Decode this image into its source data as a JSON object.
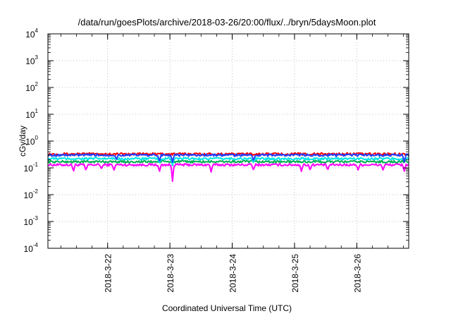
{
  "chart_data": {
    "type": "line",
    "title": "/data/run/goesPlots/archive/2018-03-26/20:00/flux/../bryn/5daysMoon.plot",
    "xlabel": "Coordinated Universal Time (UTC)",
    "ylabel": "cGy/day",
    "yscale": "log",
    "ylim": [
      0.0001,
      10000
    ],
    "ytick_labels": [
      {
        "base": "10",
        "exp": "-4"
      },
      {
        "base": "10",
        "exp": "-3"
      },
      {
        "base": "10",
        "exp": "-2"
      },
      {
        "base": "10",
        "exp": "-1"
      },
      {
        "base": "10",
        "exp": "0"
      },
      {
        "base": "10",
        "exp": "1"
      },
      {
        "base": "10",
        "exp": "2"
      },
      {
        "base": "10",
        "exp": "3"
      },
      {
        "base": "10",
        "exp": "4"
      }
    ],
    "xlim": [
      "2018-03-21T01:00",
      "2018-03-26T20:00"
    ],
    "x_tick_labels": [
      "2018-3-22",
      "2018-3-23",
      "2018-3-24",
      "2018-3-25",
      "2018-3-26"
    ],
    "grid": true,
    "legend": "none",
    "series": [
      {
        "color": "#ff00ff",
        "base": 0.13,
        "dips": [
          {
            "t": 0.41,
            "v": 0.07
          },
          {
            "t": 0.61,
            "v": 0.08
          },
          {
            "t": 0.86,
            "v": 0.09
          },
          {
            "t": 1.06,
            "v": 0.08
          },
          {
            "t": 1.79,
            "v": 0.07
          },
          {
            "t": 2.0,
            "v": 0.03
          },
          {
            "t": 2.62,
            "v": 0.07
          },
          {
            "t": 3.3,
            "v": 0.08
          },
          {
            "t": 4.07,
            "v": 0.07
          },
          {
            "t": 4.21,
            "v": 0.08
          },
          {
            "t": 4.49,
            "v": 0.08
          },
          {
            "t": 4.98,
            "v": 0.08
          },
          {
            "t": 5.38,
            "v": 0.08
          },
          {
            "t": 5.72,
            "v": 0.07
          }
        ]
      },
      {
        "color": "#ff0000",
        "base": 0.33,
        "dips": []
      },
      {
        "color": "#00b050",
        "base": 0.17,
        "dips": []
      },
      {
        "color": "#00e5e5",
        "base": 0.22,
        "dips": [
          {
            "t": 1.79,
            "v": 0.15
          },
          {
            "t": 2.0,
            "v": 0.12
          },
          {
            "t": 3.3,
            "v": 0.15
          }
        ]
      },
      {
        "color": "#1f3fff",
        "base": 0.3,
        "dips": [
          {
            "t": 1.1,
            "v": 0.2
          },
          {
            "t": 1.79,
            "v": 0.17
          },
          {
            "t": 2.0,
            "v": 0.16
          },
          {
            "t": 3.3,
            "v": 0.18
          },
          {
            "t": 5.72,
            "v": 0.15
          }
        ]
      }
    ]
  }
}
